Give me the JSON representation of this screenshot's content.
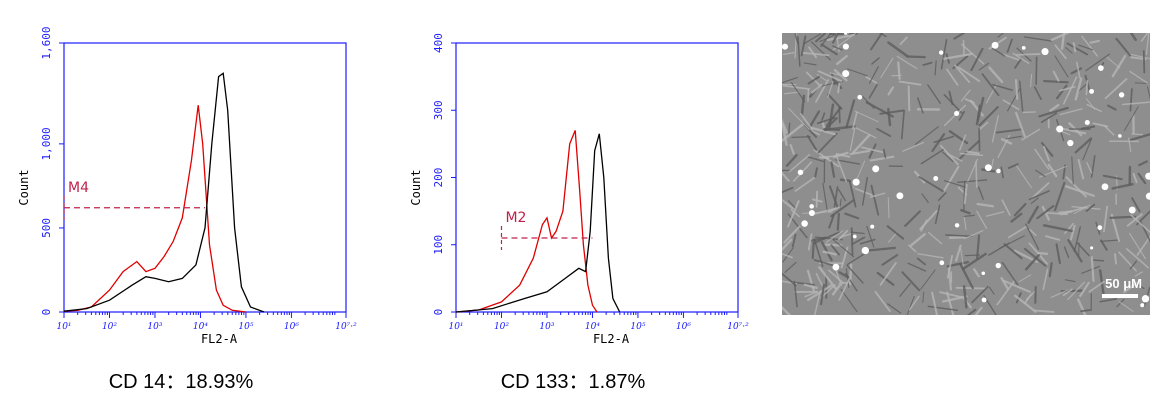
{
  "chart_data": [
    {
      "type": "line",
      "caption": "CD 14：18.93%",
      "xlabel": "FL2-A",
      "ylabel": "Count",
      "xscale": "log",
      "xlim": [
        1,
        7.2
      ],
      "ylim": [
        0,
        1600
      ],
      "yticks": [
        0,
        500,
        1000,
        1600
      ],
      "ytick_labels": [
        "0",
        "500",
        "1,000",
        "1,600"
      ],
      "xticks": [
        1,
        2,
        3,
        4,
        5,
        6,
        7.2
      ],
      "xtick_labels": [
        "10¹",
        "10²",
        "10³",
        "10⁴",
        "10⁵",
        "10⁶",
        "10⁷·²"
      ],
      "gate": {
        "label": "M4",
        "x_start": 1,
        "x_end": 4.1,
        "y": 620
      },
      "series": [
        {
          "color": "#e00000",
          "x": [
            1,
            1.3,
            1.6,
            2.0,
            2.3,
            2.6,
            2.8,
            3.0,
            3.2,
            3.4,
            3.6,
            3.8,
            3.95,
            4.05,
            4.2,
            4.35,
            4.5,
            4.7,
            5.0
          ],
          "y": [
            5,
            10,
            30,
            130,
            240,
            300,
            240,
            260,
            330,
            420,
            560,
            900,
            1230,
            1000,
            400,
            130,
            40,
            10,
            0
          ]
        },
        {
          "color": "#000000",
          "x": [
            1,
            1.5,
            2.0,
            2.5,
            2.8,
            3.0,
            3.3,
            3.6,
            3.9,
            4.1,
            4.25,
            4.4,
            4.5,
            4.6,
            4.75,
            4.9,
            5.1,
            5.4
          ],
          "y": [
            5,
            20,
            70,
            160,
            210,
            200,
            180,
            200,
            280,
            500,
            1000,
            1400,
            1420,
            1200,
            500,
            150,
            30,
            0
          ]
        }
      ]
    },
    {
      "type": "line",
      "caption": "CD 133：1.87%",
      "xlabel": "FL2-A",
      "ylabel": "Count",
      "xscale": "log",
      "xlim": [
        1,
        7.2
      ],
      "ylim": [
        0,
        400
      ],
      "yticks": [
        0,
        100,
        200,
        300,
        400
      ],
      "ytick_labels": [
        "0",
        "100",
        "200",
        "300",
        "400"
      ],
      "xticks": [
        1,
        2,
        3,
        4,
        5,
        6,
        7.2
      ],
      "xtick_labels": [
        "10¹",
        "10²",
        "10³",
        "10⁴",
        "10⁵",
        "10⁶",
        "10⁷·²"
      ],
      "gate": {
        "label": "M2",
        "x_start": 2,
        "x_end": 4.0,
        "y": 110
      },
      "series": [
        {
          "color": "#e00000",
          "x": [
            1,
            1.5,
            2.0,
            2.4,
            2.7,
            2.9,
            3.0,
            3.1,
            3.2,
            3.35,
            3.5,
            3.62,
            3.72,
            3.8,
            3.9,
            4.0,
            4.1
          ],
          "y": [
            0,
            3,
            15,
            40,
            80,
            130,
            140,
            110,
            120,
            150,
            250,
            270,
            180,
            100,
            40,
            10,
            0
          ]
        },
        {
          "color": "#000000",
          "x": [
            1,
            1.8,
            2.5,
            3.0,
            3.4,
            3.7,
            3.85,
            3.95,
            4.05,
            4.15,
            4.25,
            4.35,
            4.45,
            4.6
          ],
          "y": [
            0,
            5,
            20,
            30,
            50,
            65,
            60,
            120,
            240,
            265,
            200,
            80,
            20,
            0
          ]
        }
      ]
    }
  ],
  "micrograph": {
    "scale_label": "50 μM"
  }
}
